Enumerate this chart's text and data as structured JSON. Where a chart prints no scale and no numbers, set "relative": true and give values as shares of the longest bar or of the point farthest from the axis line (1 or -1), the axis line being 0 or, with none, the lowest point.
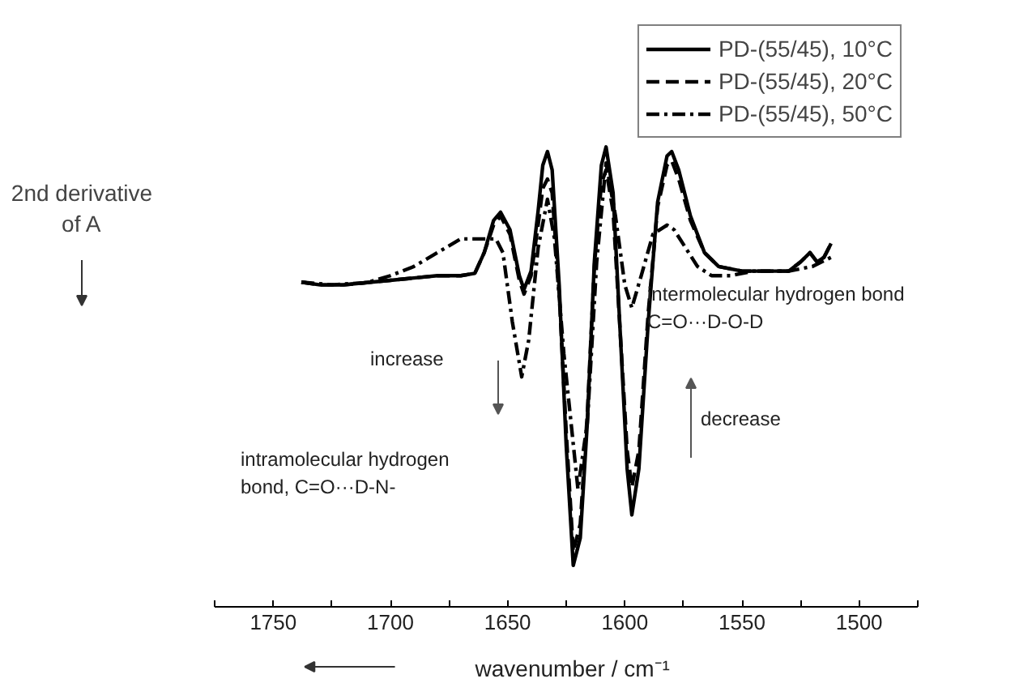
{
  "chart_data": {
    "type": "line",
    "relative": true,
    "xlabel": "wavenumber / cm⁻¹",
    "ylabel": "2nd derivative\nof A",
    "xlim": [
      1775,
      1475
    ],
    "xticks": [
      {
        "value": 1775,
        "label": null
      },
      1750,
      {
        "value": 1725,
        "label": null
      },
      1700,
      {
        "value": 1675,
        "label": null
      },
      1650,
      {
        "value": 1625,
        "label": null
      },
      1600,
      {
        "value": 1575,
        "label": null
      },
      1550,
      {
        "value": 1525,
        "label": null
      },
      1500,
      {
        "value": 1475,
        "label": null
      }
    ],
    "legend": "top right",
    "grid": false,
    "series": [
      {
        "name": "PD-(55/45), 10°C",
        "color": "#000000",
        "line_style": "solid",
        "x": [
          1738,
          1730,
          1720,
          1710,
          1700,
          1690,
          1680,
          1670,
          1664,
          1660,
          1656,
          1653,
          1649,
          1645,
          1643,
          1640,
          1637,
          1635,
          1633,
          1631,
          1628,
          1625,
          1622,
          1619,
          1616,
          1613,
          1610,
          1608,
          1605,
          1602,
          1599,
          1597,
          1594,
          1590,
          1586,
          1582,
          1580,
          1577,
          1572,
          1566,
          1560,
          1550,
          1540,
          1530,
          1525,
          1521,
          1518,
          1515,
          1512
        ],
        "values": [
          0.706,
          0.7,
          0.7,
          0.705,
          0.71,
          0.715,
          0.72,
          0.72,
          0.725,
          0.77,
          0.84,
          0.858,
          0.82,
          0.72,
          0.69,
          0.73,
          0.86,
          0.96,
          0.99,
          0.95,
          0.7,
          0.35,
          0.09,
          0.15,
          0.4,
          0.75,
          0.96,
          1.0,
          0.9,
          0.6,
          0.3,
          0.2,
          0.3,
          0.62,
          0.88,
          0.98,
          0.99,
          0.95,
          0.85,
          0.77,
          0.74,
          0.73,
          0.73,
          0.73,
          0.75,
          0.77,
          0.75,
          0.76,
          0.79
        ]
      },
      {
        "name": "PD-(55/45), 20°C",
        "color": "#000000",
        "line_style": "dashed",
        "x": [
          1738,
          1730,
          1720,
          1710,
          1700,
          1690,
          1680,
          1670,
          1664,
          1660,
          1656,
          1653,
          1649,
          1645,
          1643,
          1640,
          1637,
          1635,
          1633,
          1631,
          1628,
          1625,
          1622,
          1619,
          1616,
          1613,
          1610,
          1608,
          1605,
          1602,
          1599,
          1597,
          1594,
          1590,
          1586,
          1582,
          1580,
          1577,
          1572,
          1566,
          1560,
          1550,
          1540,
          1530,
          1525,
          1521,
          1518,
          1515,
          1512
        ],
        "values": [
          0.706,
          0.7,
          0.7,
          0.705,
          0.71,
          0.715,
          0.72,
          0.72,
          0.725,
          0.77,
          0.83,
          0.85,
          0.81,
          0.71,
          0.68,
          0.72,
          0.83,
          0.91,
          0.93,
          0.9,
          0.68,
          0.38,
          0.12,
          0.18,
          0.42,
          0.74,
          0.92,
          0.95,
          0.86,
          0.6,
          0.34,
          0.26,
          0.34,
          0.64,
          0.87,
          0.96,
          0.97,
          0.93,
          0.84,
          0.77,
          0.74,
          0.73,
          0.73,
          0.73,
          0.75,
          0.77,
          0.75,
          0.76,
          0.79
        ]
      },
      {
        "name": "PD-(55/45), 50°C",
        "color": "#000000",
        "line_style": "dashdot",
        "x": [
          1738,
          1725,
          1710,
          1700,
          1690,
          1680,
          1670,
          1663,
          1658,
          1655,
          1652,
          1648,
          1644,
          1641,
          1637,
          1633,
          1630,
          1626,
          1620,
          1616,
          1612,
          1608,
          1604,
          1600,
          1597,
          1593,
          1588,
          1582,
          1579,
          1574,
          1569,
          1563,
          1555,
          1545,
          1530,
          1520,
          1512
        ],
        "values": [
          0.706,
          0.7,
          0.705,
          0.72,
          0.74,
          0.77,
          0.8,
          0.8,
          0.8,
          0.8,
          0.77,
          0.62,
          0.5,
          0.58,
          0.78,
          0.886,
          0.8,
          0.55,
          0.256,
          0.4,
          0.75,
          0.965,
          0.85,
          0.7,
          0.65,
          0.72,
          0.81,
          0.83,
          0.82,
          0.78,
          0.74,
          0.72,
          0.72,
          0.73,
          0.73,
          0.74,
          0.76
        ]
      }
    ],
    "annotations": [
      "increase",
      "intramolecular hydrogen\nbond, C=O···D-N-",
      "intermolecular hydrogen bond\nC=O···D-O-D",
      "decrease"
    ]
  }
}
